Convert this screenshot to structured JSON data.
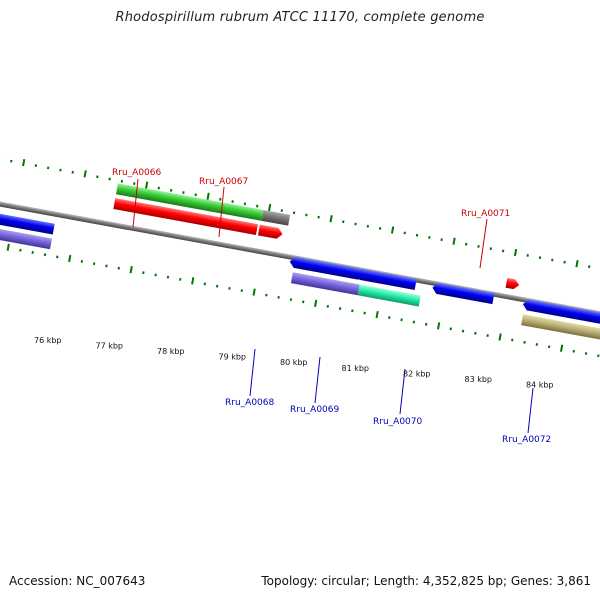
{
  "title": "Rhodospirillum rubrum ATCC 11170, complete genome",
  "footer": {
    "accession": "Accession: NC_007643",
    "summary": "Topology: circular; Length: 4,352,825 bp; Genes: 3,861"
  },
  "scale": {
    "ticks": [
      {
        "label": "76 kbp"
      },
      {
        "label": "77 kbp"
      },
      {
        "label": "78 kbp"
      },
      {
        "label": "79 kbp"
      },
      {
        "label": "80 kbp"
      },
      {
        "label": "81 kbp"
      },
      {
        "label": "82 kbp"
      },
      {
        "label": "83 kbp"
      },
      {
        "label": "84 kbp"
      }
    ]
  },
  "genes": {
    "upper": [
      {
        "label": "Rru_A0066",
        "color": "#cc0000"
      },
      {
        "label": "Rru_A0067",
        "color": "#cc0000"
      },
      {
        "label": "Rru_A0071",
        "color": "#cc0000"
      }
    ],
    "lower": [
      {
        "label": "Rru_A0068",
        "color": "#0000bb"
      },
      {
        "label": "Rru_A0069",
        "color": "#0000bb"
      },
      {
        "label": "Rru_A0070",
        "color": "#0000bb"
      },
      {
        "label": "Rru_A0072",
        "color": "#0000bb"
      }
    ]
  },
  "colors": {
    "forward_cds": "#ff0000",
    "reverse_cds": "#0000ee",
    "green_feature": "#33cc33",
    "gray_feature": "#777777",
    "purple_feature": "#7766dd",
    "teal_feature": "#22eeaa",
    "khaki_feature": "#bbb077",
    "tick_color": "#007700",
    "backbone": "#777777"
  }
}
